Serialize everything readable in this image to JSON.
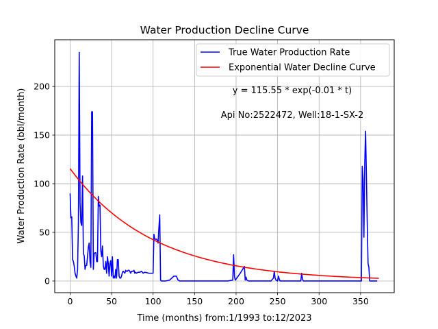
{
  "chart_data": {
    "type": "line",
    "title": "Water Production Decline Curve",
    "xlabel": "Time (months) from:1/1993 to:12/2023",
    "ylabel": "Water Production Rate (bbl/month)",
    "xlim": [
      -18.5,
      390.5
    ],
    "ylim": [
      -12,
      248
    ],
    "xticks": [
      0,
      50,
      100,
      150,
      200,
      250,
      300,
      350
    ],
    "yticks": [
      0,
      50,
      100,
      150,
      200
    ],
    "grid": true,
    "legend_position": "top-right",
    "annotations": [
      "y = 115.55 * exp(-0.01 * t)",
      "Api No:2522472, Well:18-1-SX-2"
    ],
    "series": [
      {
        "name": "True Water Production Rate",
        "color": "#0000ff",
        "x": [
          0,
          1,
          2,
          3,
          4,
          5,
          6,
          7,
          8,
          9,
          10,
          11,
          12,
          13,
          14,
          15,
          16,
          17,
          18,
          19,
          20,
          21,
          22,
          23,
          24,
          25,
          26,
          27,
          28,
          29,
          30,
          31,
          32,
          33,
          34,
          35,
          36,
          37,
          38,
          39,
          40,
          41,
          42,
          43,
          44,
          45,
          46,
          47,
          48,
          49,
          50,
          51,
          52,
          53,
          54,
          55,
          56,
          57,
          58,
          59,
          60,
          61,
          62,
          63,
          64,
          65,
          66,
          67,
          68,
          69,
          70,
          71,
          72,
          73,
          74,
          75,
          76,
          77,
          78,
          79,
          80,
          82,
          84,
          86,
          88,
          90,
          95,
          100,
          101,
          102,
          103,
          104,
          105,
          106,
          107,
          108,
          109,
          110,
          111,
          112,
          115,
          120,
          125,
          126,
          128,
          130,
          132,
          134,
          136,
          140,
          150,
          160,
          170,
          180,
          190,
          196,
          197,
          198,
          199,
          200,
          205,
          210,
          211,
          212,
          213,
          215,
          220,
          225,
          230,
          231,
          232,
          233,
          235,
          240,
          242,
          244,
          245,
          246,
          247,
          248,
          250,
          251,
          252,
          253,
          255,
          260,
          270,
          278,
          279,
          280,
          281,
          285,
          290,
          300,
          310,
          320,
          330,
          340,
          345,
          349,
          350,
          351,
          352,
          353,
          354,
          355,
          356,
          357,
          358,
          359,
          360,
          361,
          362,
          365,
          370
        ],
        "y": [
          90,
          65,
          66,
          22,
          20,
          15,
          8,
          5,
          3,
          12,
          60,
          235,
          80,
          60,
          57,
          108,
          28,
          26,
          12,
          16,
          16,
          25,
          35,
          39,
          20,
          14,
          174,
          174,
          12,
          28,
          29,
          29,
          20,
          20,
          87,
          77,
          78,
          31,
          25,
          36,
          16,
          12,
          12,
          20,
          8,
          25,
          18,
          5,
          18,
          21,
          5,
          25,
          3,
          5,
          3,
          12,
          3,
          22,
          22,
          5,
          3,
          3,
          5,
          9,
          10,
          9,
          8,
          11,
          10,
          10,
          11,
          11,
          10,
          8,
          10,
          10,
          10,
          11,
          8,
          9,
          8,
          9,
          9,
          10,
          8,
          9,
          8,
          8,
          48,
          43,
          43,
          43,
          42,
          39,
          55,
          68,
          1,
          0,
          0,
          0,
          0,
          1,
          5,
          5,
          5,
          1,
          0,
          0,
          0,
          0,
          0,
          0,
          0,
          0,
          0,
          1,
          27,
          5,
          1,
          2,
          8,
          15,
          1,
          4,
          1,
          0,
          0,
          0,
          0,
          0,
          0,
          0,
          0,
          0,
          0,
          2,
          3,
          10,
          3,
          1,
          0,
          5,
          2,
          0,
          0,
          0,
          0,
          0,
          8,
          2,
          0,
          0,
          0,
          0,
          0,
          0,
          0,
          0,
          0,
          0,
          0,
          0,
          118,
          105,
          45,
          120,
          154,
          110,
          60,
          18,
          14,
          0,
          0,
          0,
          0
        ]
      },
      {
        "name": "Exponential Water Decline Curve",
        "color": "#ff0000",
        "model": {
          "a": 115.55,
          "b": 0.01,
          "t_start": 0,
          "t_end": 372
        }
      }
    ]
  }
}
